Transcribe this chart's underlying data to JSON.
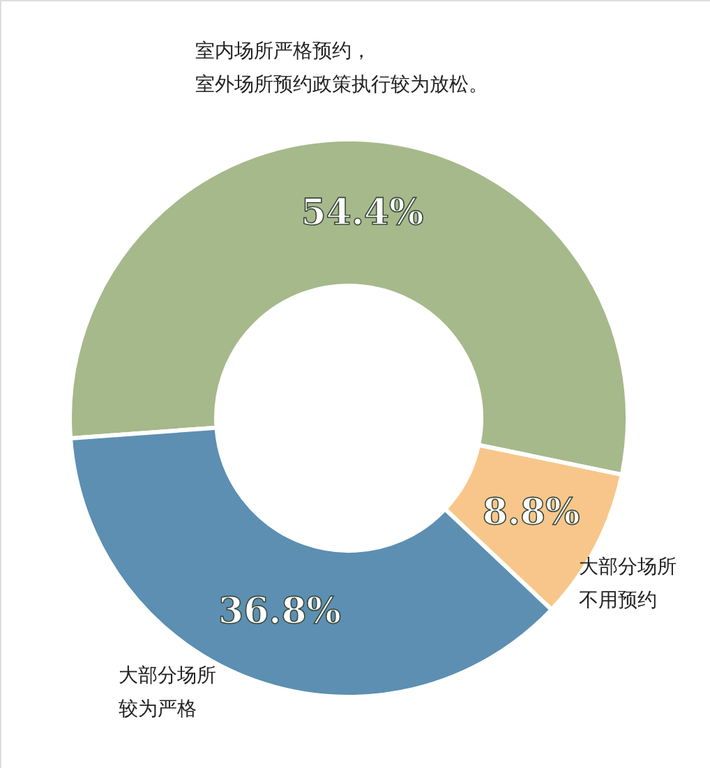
{
  "chart_data": {
    "type": "donut",
    "categories": [
      null,
      null,
      null
    ],
    "values": [
      54.4,
      8.8,
      36.8
    ],
    "colors": [
      "#a6b98b",
      "#f8c68a",
      "#5c8fb2"
    ],
    "value_labels": [
      "54.4%",
      "8.8%",
      "36.8%"
    ],
    "annotations": [
      "室内场所严格预约，",
      "室外场所预约政策执行较为放松。",
      "大部分场所",
      "不用预约",
      "大部分场所",
      "较为严格"
    ]
  }
}
